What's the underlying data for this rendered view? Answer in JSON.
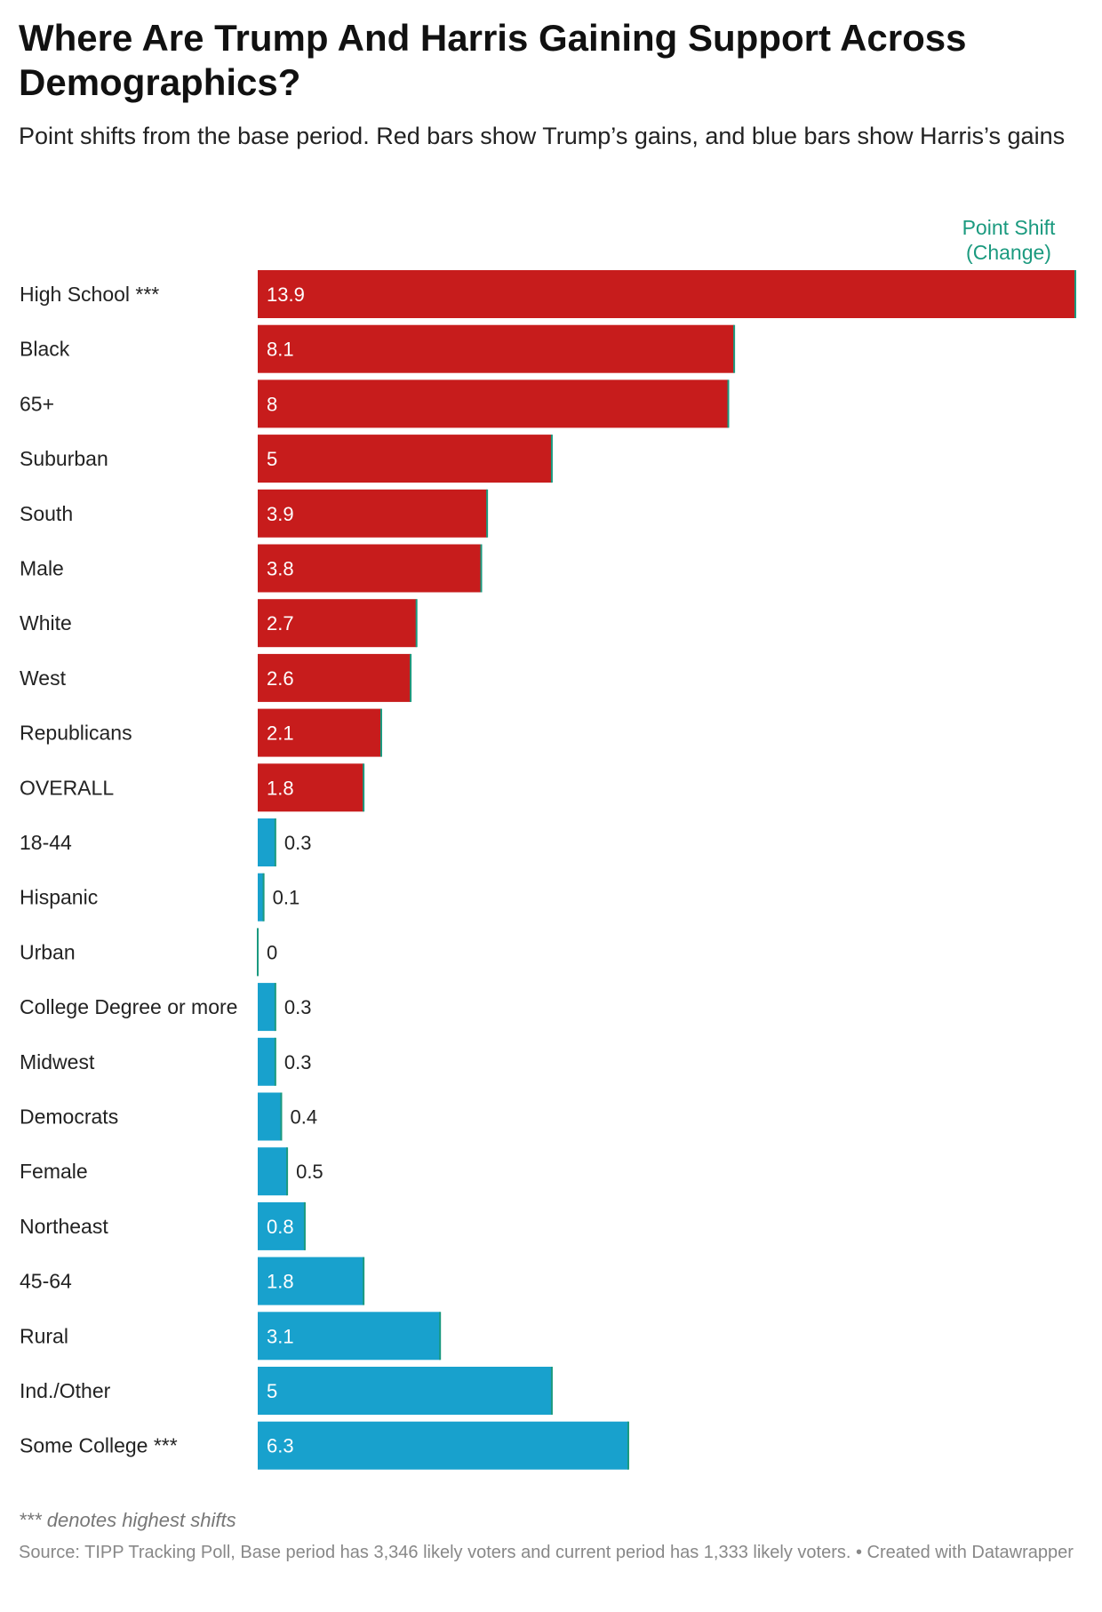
{
  "title": "Where Are Trump And Harris Gaining Support Across Demographics?",
  "subtitle": "Point shifts from the base period. Red bars show Trump’s gains, and blue bars show Harris’s gains",
  "column_header_line1": "Point Shift",
  "column_header_line2": "(Change)",
  "note": "*** denotes highest shifts",
  "source": "Source: TIPP Tracking Poll, Base period has 3,346 likely voters and current period has 1,333 likely voters. • Created with Datawrapper",
  "colors": {
    "trump": "#c71c1c",
    "harris": "#18a1cd",
    "bar_edge": "#1b9a7f",
    "value_inside": "#ffffff",
    "value_outside": "#222222"
  },
  "chart_data": {
    "type": "bar",
    "orientation": "horizontal",
    "title": "Where Are Trump And Harris Gaining Support Across Demographics?",
    "value_label": "Point Shift (Change)",
    "xlim": [
      0,
      13.9
    ],
    "rows": [
      {
        "label": "High School ***",
        "value": 13.9,
        "value_text": "13.9",
        "party": "trump"
      },
      {
        "label": "Black",
        "value": 8.1,
        "value_text": "8.1",
        "party": "trump"
      },
      {
        "label": "65+",
        "value": 8,
        "value_text": "8",
        "party": "trump"
      },
      {
        "label": "Suburban",
        "value": 5,
        "value_text": "5",
        "party": "trump"
      },
      {
        "label": "South",
        "value": 3.9,
        "value_text": "3.9",
        "party": "trump"
      },
      {
        "label": "Male",
        "value": 3.8,
        "value_text": "3.8",
        "party": "trump"
      },
      {
        "label": "White",
        "value": 2.7,
        "value_text": "2.7",
        "party": "trump"
      },
      {
        "label": "West",
        "value": 2.6,
        "value_text": "2.6",
        "party": "trump"
      },
      {
        "label": "Republicans",
        "value": 2.1,
        "value_text": "2.1",
        "party": "trump"
      },
      {
        "label": "OVERALL",
        "value": 1.8,
        "value_text": "1.8",
        "party": "trump"
      },
      {
        "label": "18-44",
        "value": 0.3,
        "value_text": "0.3",
        "party": "harris"
      },
      {
        "label": "Hispanic",
        "value": 0.1,
        "value_text": "0.1",
        "party": "harris"
      },
      {
        "label": "Urban",
        "value": 0,
        "value_text": "0",
        "party": "harris"
      },
      {
        "label": "College Degree or more",
        "value": 0.3,
        "value_text": "0.3",
        "party": "harris"
      },
      {
        "label": "Midwest",
        "value": 0.3,
        "value_text": "0.3",
        "party": "harris"
      },
      {
        "label": "Democrats",
        "value": 0.4,
        "value_text": "0.4",
        "party": "harris"
      },
      {
        "label": "Female",
        "value": 0.5,
        "value_text": "0.5",
        "party": "harris"
      },
      {
        "label": "Northeast",
        "value": 0.8,
        "value_text": "0.8",
        "party": "harris"
      },
      {
        "label": "45-64",
        "value": 1.8,
        "value_text": "1.8",
        "party": "harris"
      },
      {
        "label": "Rural",
        "value": 3.1,
        "value_text": "3.1",
        "party": "harris"
      },
      {
        "label": "Ind./Other",
        "value": 5,
        "value_text": "5",
        "party": "harris"
      },
      {
        "label": "Some College ***",
        "value": 6.3,
        "value_text": "6.3",
        "party": "harris"
      }
    ]
  }
}
